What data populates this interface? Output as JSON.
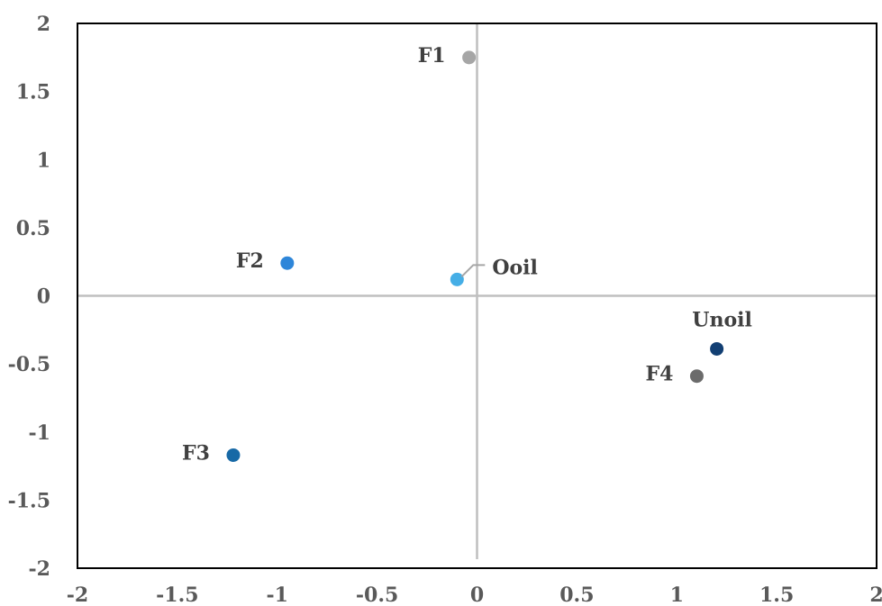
{
  "chart_data": {
    "type": "scatter",
    "title": "",
    "xlabel": "",
    "ylabel": "",
    "xlim": [
      -2,
      2
    ],
    "ylim": [
      -2,
      2
    ],
    "x_ticks": [
      -2,
      -1.5,
      -1,
      -0.5,
      0,
      0.5,
      1,
      1.5,
      2
    ],
    "y_ticks": [
      -2,
      -1.5,
      -1,
      -0.5,
      0,
      0.5,
      1,
      1.5,
      2
    ],
    "grid": false,
    "zero_lines": true,
    "legend": "none",
    "points": [
      {
        "label": "F1",
        "x": -0.04,
        "y": 1.75,
        "color": "#a6a6a6",
        "label_side": "left"
      },
      {
        "label": "F2",
        "x": -0.95,
        "y": 0.24,
        "color": "#2e86d9",
        "label_side": "left"
      },
      {
        "label": "Ooil",
        "x": -0.1,
        "y": 0.12,
        "color": "#45aee6",
        "label_side": "right-leader"
      },
      {
        "label": "F3",
        "x": -1.22,
        "y": -1.17,
        "color": "#1769a6",
        "label_side": "left"
      },
      {
        "label": "Unoil",
        "x": 1.2,
        "y": -0.39,
        "color": "#123f73",
        "label_side": "above"
      },
      {
        "label": "F4",
        "x": 1.1,
        "y": -0.59,
        "color": "#6b6b6b",
        "label_side": "left"
      }
    ]
  }
}
